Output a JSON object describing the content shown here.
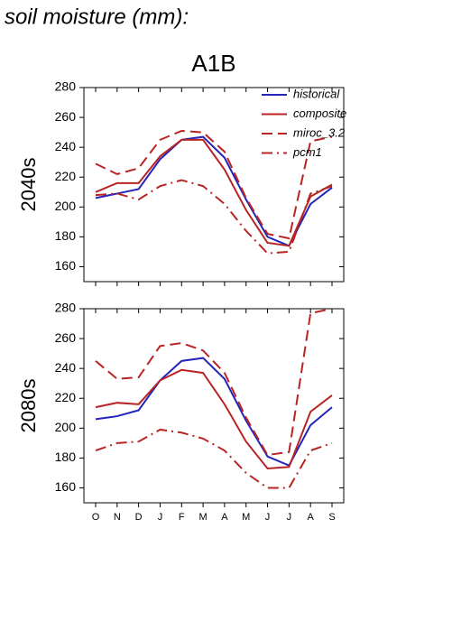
{
  "title": "soil moisture (mm):",
  "subtitle": "A1B",
  "chart_data": [
    {
      "type": "line",
      "ylabel": "2040s",
      "ylim": [
        150,
        280
      ],
      "yticks": [
        160,
        180,
        200,
        220,
        240,
        260,
        280
      ],
      "legend": "upper right",
      "series": [
        {
          "name": "historical",
          "color": "#2424b8",
          "dash": "solid",
          "values": [
            206,
            209,
            212,
            232,
            245,
            247,
            233,
            205,
            180,
            174,
            202,
            213
          ]
        },
        {
          "name": "composite",
          "color": "#b82424",
          "dash": "solid",
          "values": [
            210,
            216,
            216,
            234,
            245,
            245,
            225,
            198,
            176,
            174,
            207,
            215
          ]
        },
        {
          "name": "miroc_3.2",
          "color": "#b82424",
          "dash": "dashed",
          "values": [
            229,
            222,
            226,
            245,
            251,
            250,
            237,
            206,
            182,
            179,
            244,
            247
          ]
        },
        {
          "name": "pcm1",
          "color": "#b82424",
          "dash": "dashdot",
          "values": [
            208,
            209,
            205,
            214,
            218,
            214,
            202,
            184,
            169,
            170,
            209,
            214
          ]
        }
      ]
    },
    {
      "type": "line",
      "ylabel": "2080s",
      "ylim": [
        150,
        280
      ],
      "yticks": [
        160,
        180,
        200,
        220,
        240,
        260,
        280
      ],
      "categories": [
        "O",
        "N",
        "D",
        "J",
        "F",
        "M",
        "A",
        "M",
        "J",
        "J",
        "A",
        "S"
      ],
      "series": [
        {
          "name": "historical",
          "color": "#2424b8",
          "dash": "solid",
          "values": [
            206,
            208,
            212,
            232,
            245,
            247,
            233,
            205,
            181,
            175,
            202,
            214
          ]
        },
        {
          "name": "composite",
          "color": "#b82424",
          "dash": "solid",
          "values": [
            214,
            217,
            216,
            232,
            239,
            237,
            216,
            191,
            173,
            174,
            211,
            222
          ]
        },
        {
          "name": "miroc_3.2",
          "color": "#b82424",
          "dash": "dashed",
          "values": [
            245,
            233,
            234,
            255,
            257,
            252,
            237,
            207,
            182,
            184,
            277,
            280
          ]
        },
        {
          "name": "pcm1",
          "color": "#b82424",
          "dash": "dashdot",
          "values": [
            185,
            190,
            191,
            199,
            197,
            193,
            185,
            170,
            160,
            160,
            185,
            190
          ]
        }
      ]
    }
  ]
}
